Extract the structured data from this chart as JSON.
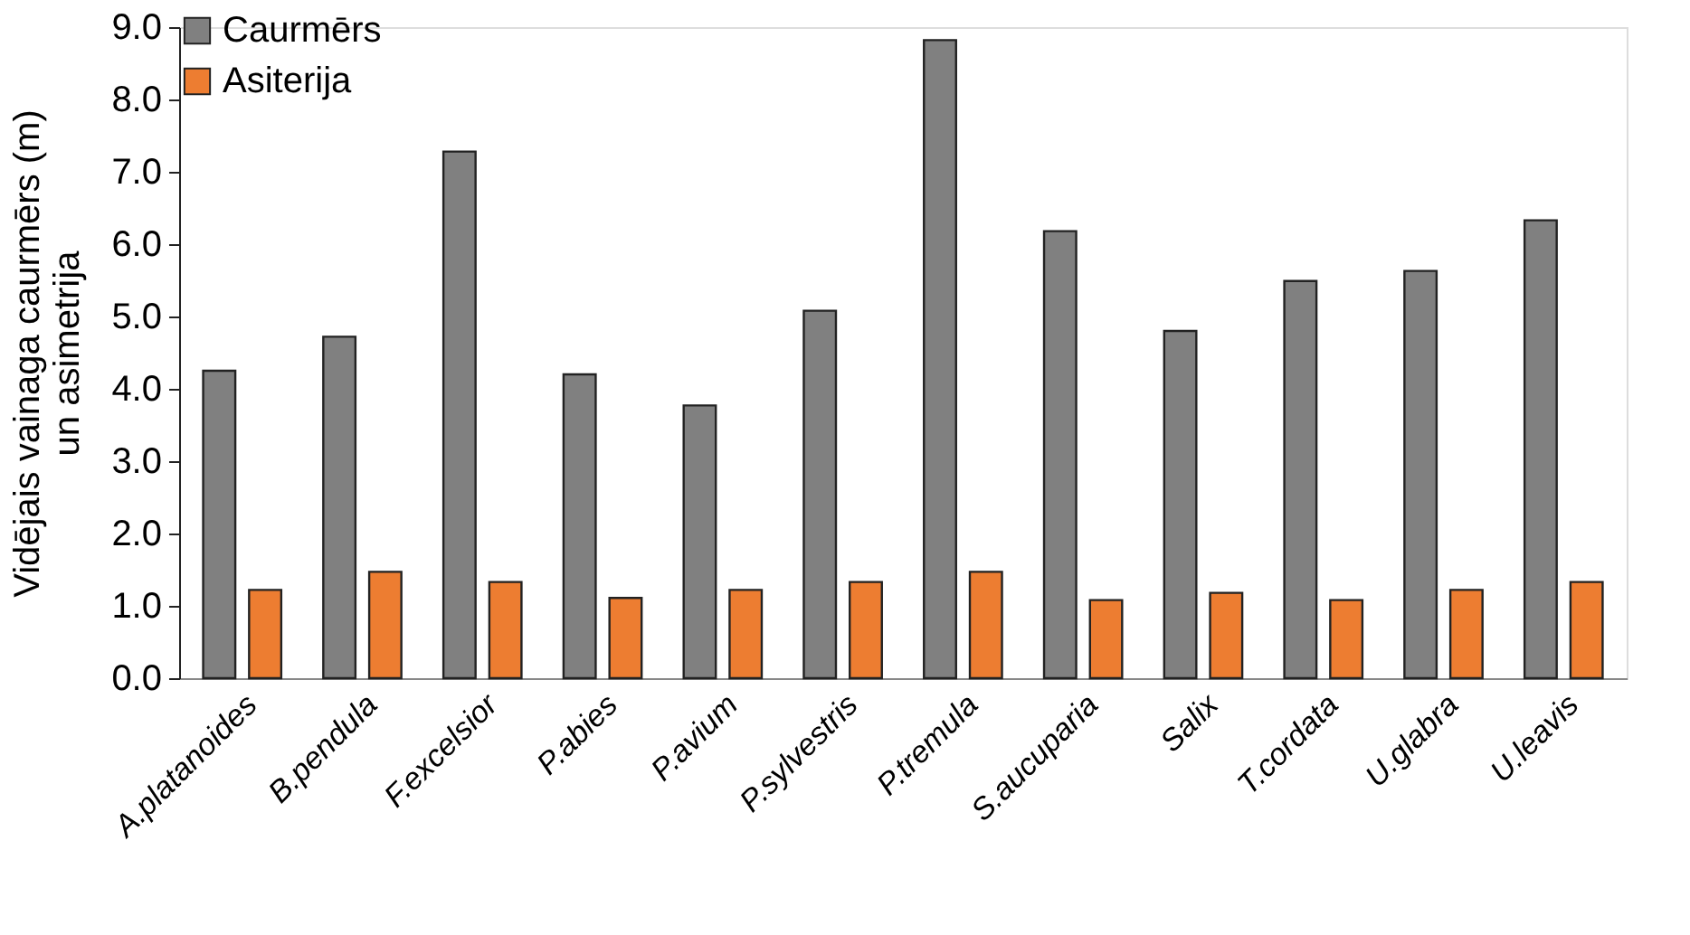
{
  "chart_data": {
    "type": "bar",
    "ylabel": "Vidējais vainaga caurmērs (m)\nun asimetrija",
    "categories": [
      "A.platanoides",
      "B.pendula",
      "F.excelsior",
      "P.abies",
      "P.avium",
      "P.sylvestris",
      "P.tremula",
      "S.aucuparia",
      "Salix",
      "T.cordata",
      "U.glabra",
      "U.leavis"
    ],
    "series": [
      {
        "name": "Caurmērs",
        "color": "#808080",
        "values": [
          4.25,
          4.72,
          7.28,
          4.2,
          3.77,
          5.08,
          8.82,
          6.18,
          4.8,
          5.49,
          5.63,
          6.33
        ]
      },
      {
        "name": "Asiterija",
        "color": "#ed7d31",
        "values": [
          1.22,
          1.47,
          1.33,
          1.11,
          1.22,
          1.33,
          1.47,
          1.08,
          1.18,
          1.08,
          1.22,
          1.33
        ]
      }
    ],
    "ylim": [
      0,
      9
    ],
    "yticks": [
      {
        "value": 0,
        "label": "0.0"
      },
      {
        "value": 1,
        "label": "1.0"
      },
      {
        "value": 2,
        "label": "2.0"
      },
      {
        "value": 3,
        "label": "3.0"
      },
      {
        "value": 4,
        "label": "4.0"
      },
      {
        "value": 5,
        "label": "5.0"
      },
      {
        "value": 6,
        "label": "6.0"
      },
      {
        "value": 7,
        "label": "7.0"
      },
      {
        "value": 8,
        "label": "8.0"
      },
      {
        "value": 9,
        "label": "9.0"
      }
    ],
    "grid": false,
    "legend": "top"
  }
}
